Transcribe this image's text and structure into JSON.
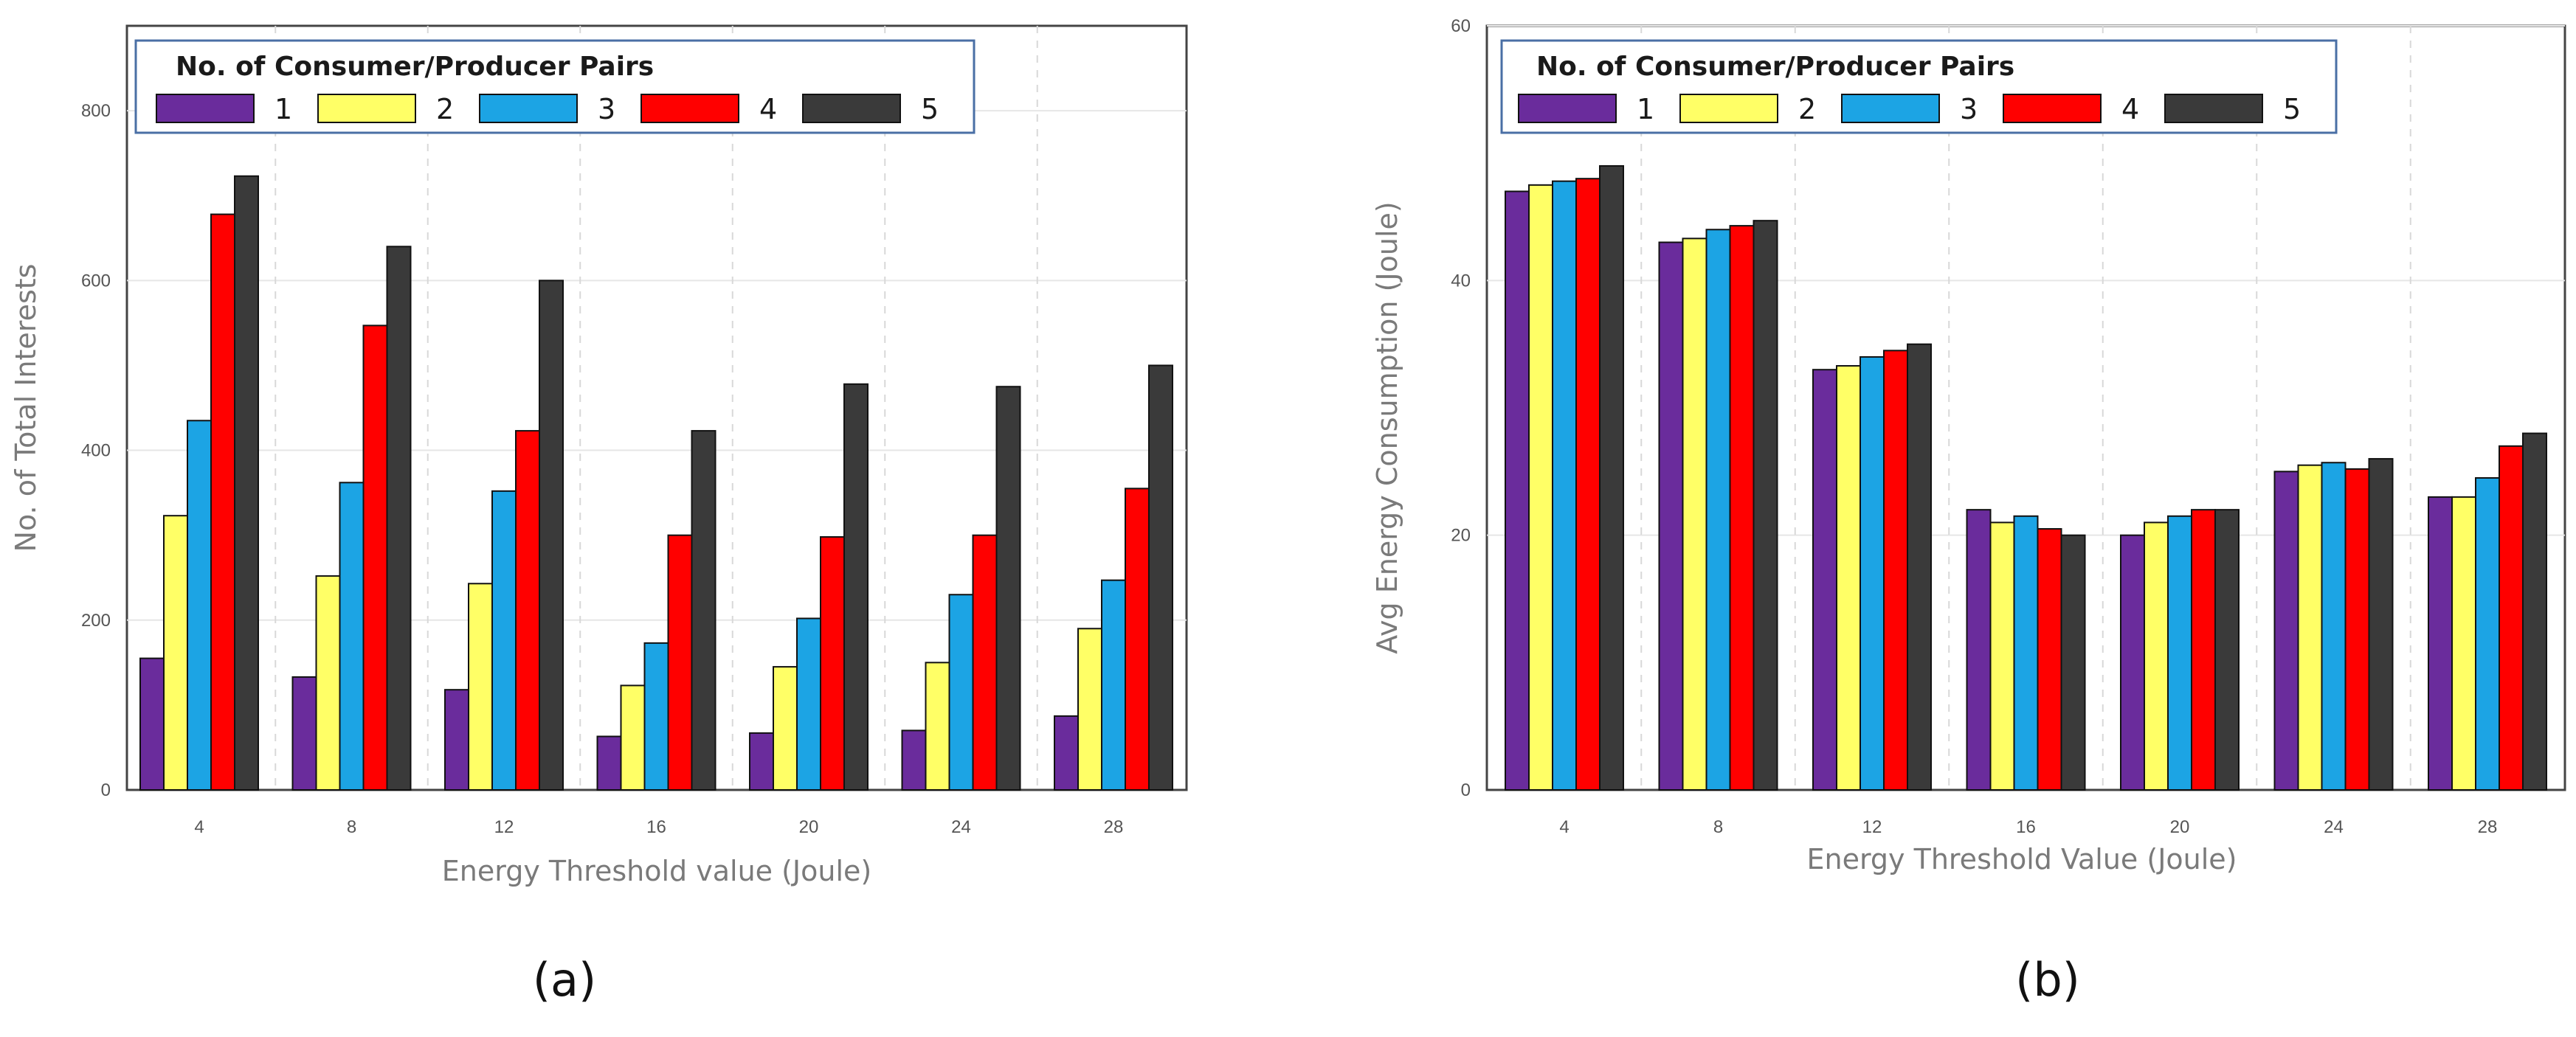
{
  "chart_data": [
    {
      "type": "bar",
      "panel_caption": "(a)",
      "xlabel": "Energy Threshold value (Joule)",
      "ylabel": "No. of  Total Interests",
      "ylim": [
        0,
        900
      ],
      "yticks": [
        0,
        200,
        400,
        600,
        800
      ],
      "categories": [
        "4",
        "8",
        "12",
        "16",
        "20",
        "24",
        "28"
      ],
      "legend_title": "No. of Consumer/Producer Pairs",
      "legend_position": "top-left",
      "grid": true,
      "series": [
        {
          "name": "1",
          "color": "#6a2c9c",
          "values": [
            155,
            133,
            118,
            63,
            67,
            70,
            87
          ]
        },
        {
          "name": "2",
          "color": "#ffff66",
          "values": [
            323,
            252,
            243,
            123,
            145,
            150,
            190
          ]
        },
        {
          "name": "3",
          "color": "#1ca4e4",
          "values": [
            435,
            362,
            352,
            173,
            202,
            230,
            247
          ]
        },
        {
          "name": "4",
          "color": "#ff0000",
          "values": [
            678,
            547,
            423,
            300,
            298,
            300,
            355
          ]
        },
        {
          "name": "5",
          "color": "#3a3a3a",
          "values": [
            723,
            640,
            600,
            423,
            478,
            475,
            500
          ]
        }
      ]
    },
    {
      "type": "bar",
      "panel_caption": "(b)",
      "xlabel": "Energy Threshold Value (Joule)",
      "ylabel": "Avg Energy Consumption (Joule)",
      "ylim": [
        0,
        60
      ],
      "yticks": [
        0,
        20,
        40,
        60
      ],
      "categories": [
        "4",
        "8",
        "12",
        "16",
        "20",
        "24",
        "28"
      ],
      "legend_title": "No. of Consumer/Producer Pairs",
      "legend_position": "top-left",
      "grid": true,
      "series": [
        {
          "name": "1",
          "color": "#6a2c9c",
          "values": [
            47,
            43,
            33,
            22,
            20,
            25,
            23
          ]
        },
        {
          "name": "2",
          "color": "#ffff66",
          "values": [
            47.5,
            43.3,
            33.3,
            21,
            21,
            25.5,
            23
          ]
        },
        {
          "name": "3",
          "color": "#1ca4e4",
          "values": [
            47.8,
            44,
            34,
            21.5,
            21.5,
            25.7,
            24.5
          ]
        },
        {
          "name": "4",
          "color": "#ff0000",
          "values": [
            48,
            44.3,
            34.5,
            20.5,
            22,
            25.2,
            27
          ]
        },
        {
          "name": "5",
          "color": "#3a3a3a",
          "values": [
            49,
            44.7,
            35,
            20,
            22,
            26,
            28
          ]
        }
      ]
    }
  ]
}
